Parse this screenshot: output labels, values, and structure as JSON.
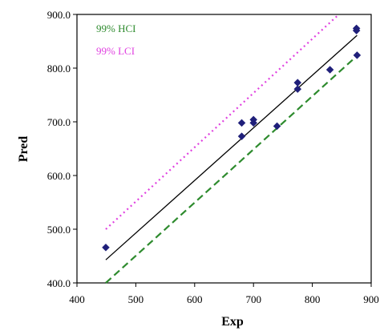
{
  "chart_data": {
    "type": "scatter",
    "xlabel": "Exp",
    "ylabel": "Pred",
    "xlim": [
      400,
      900
    ],
    "ylim": [
      400,
      900
    ],
    "x_ticks": [
      400,
      500,
      600,
      700,
      800,
      900
    ],
    "x_tick_labels": [
      "400",
      "500",
      "600",
      "700",
      "800",
      "900"
    ],
    "y_ticks": [
      400,
      500,
      600,
      700,
      800,
      900
    ],
    "y_tick_labels": [
      "400.0",
      "500.0",
      "600.0",
      "700.0",
      "800.0",
      "900.0"
    ],
    "grid": false,
    "legend_position": "top-left",
    "points": {
      "x": [
        449,
        680,
        680,
        700,
        700,
        740,
        775,
        775,
        830,
        875,
        875,
        876
      ],
      "y": [
        466,
        673,
        698,
        698,
        704,
        692,
        773,
        761,
        797,
        870,
        874,
        824
      ],
      "color": "#1f1f7a"
    },
    "lines": [
      {
        "name": "",
        "x": [
          449,
          876
        ],
        "y": [
          443,
          861
        ],
        "color": "#000000",
        "style": "solid"
      },
      {
        "name": "99% HCI",
        "x": [
          449,
          876
        ],
        "y": [
          400,
          823
        ],
        "color": "#2e8b2e",
        "style": "dashed"
      },
      {
        "name": "99% LCI",
        "x": [
          449,
          845
        ],
        "y": [
          500,
          900
        ],
        "color": "#e040e0",
        "style": "dotted"
      }
    ],
    "legend": [
      {
        "label": "99% HCI",
        "color": "#2e8b2e"
      },
      {
        "label": "99% LCI",
        "color": "#e040e0"
      }
    ]
  }
}
